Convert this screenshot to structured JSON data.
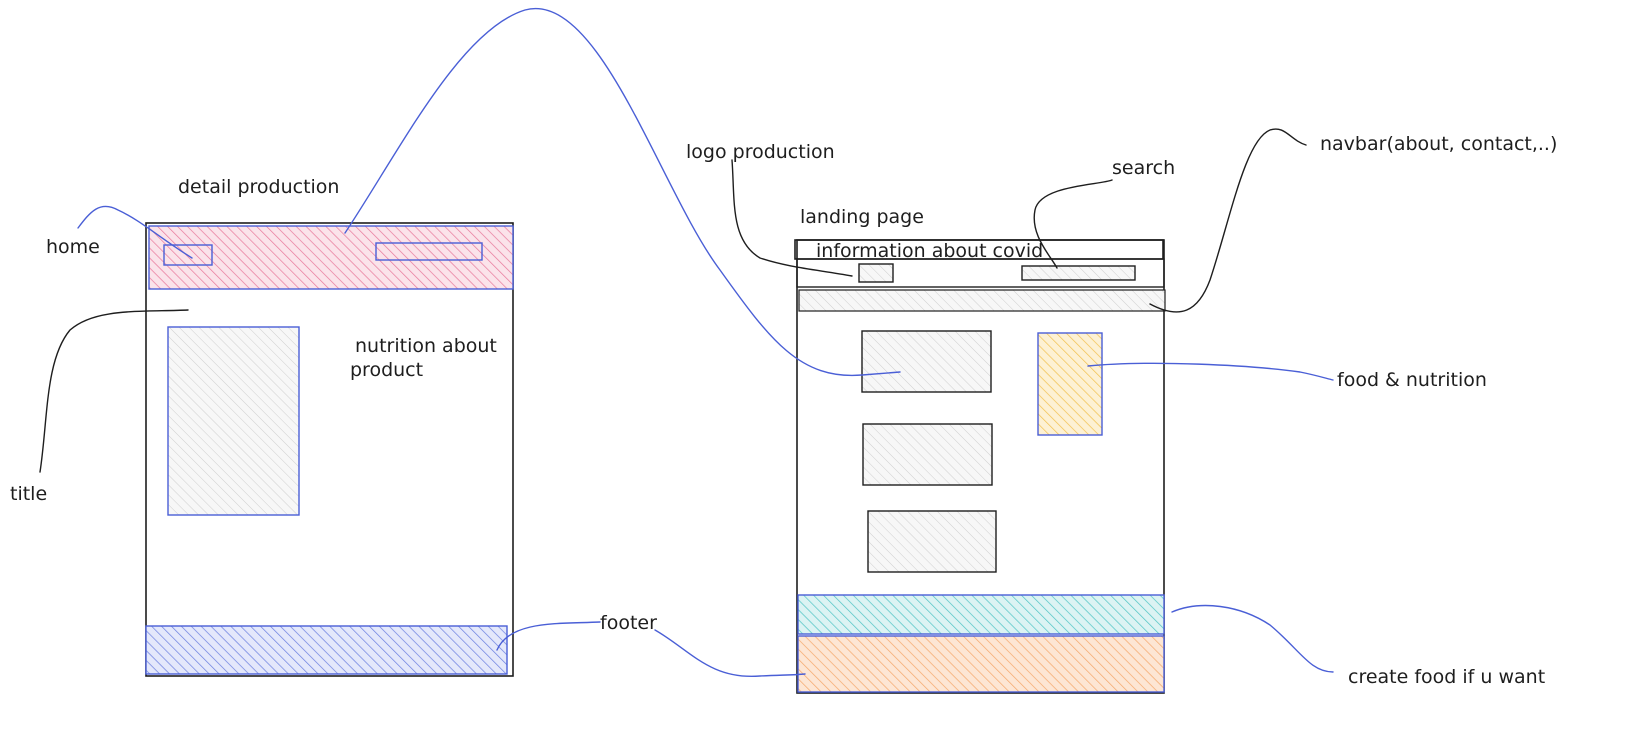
{
  "labels": {
    "detail_production": "detail production",
    "home": "home",
    "title": "title",
    "nutrition_line1": "nutrition about",
    "nutrition_line2": "product",
    "footer": "footer",
    "logo_production": "logo production",
    "landing_page": "landing page",
    "information_about_covid": "information about covid",
    "search": "search",
    "navbar": "navbar(about, contact,..)",
    "food_nutrition": "food & nutrition",
    "create_food": "create food if u want"
  },
  "colors": {
    "stroke": "#1e1e1e",
    "connector": "#4a5fd6",
    "header_fill": "#e8779a",
    "footer_fill": "#6b7fe0",
    "gray_fill": "#c9c9c9",
    "yellow_fill": "#f2c14e",
    "teal_fill": "#4fc4c4",
    "orange_fill": "#f5a76a"
  }
}
